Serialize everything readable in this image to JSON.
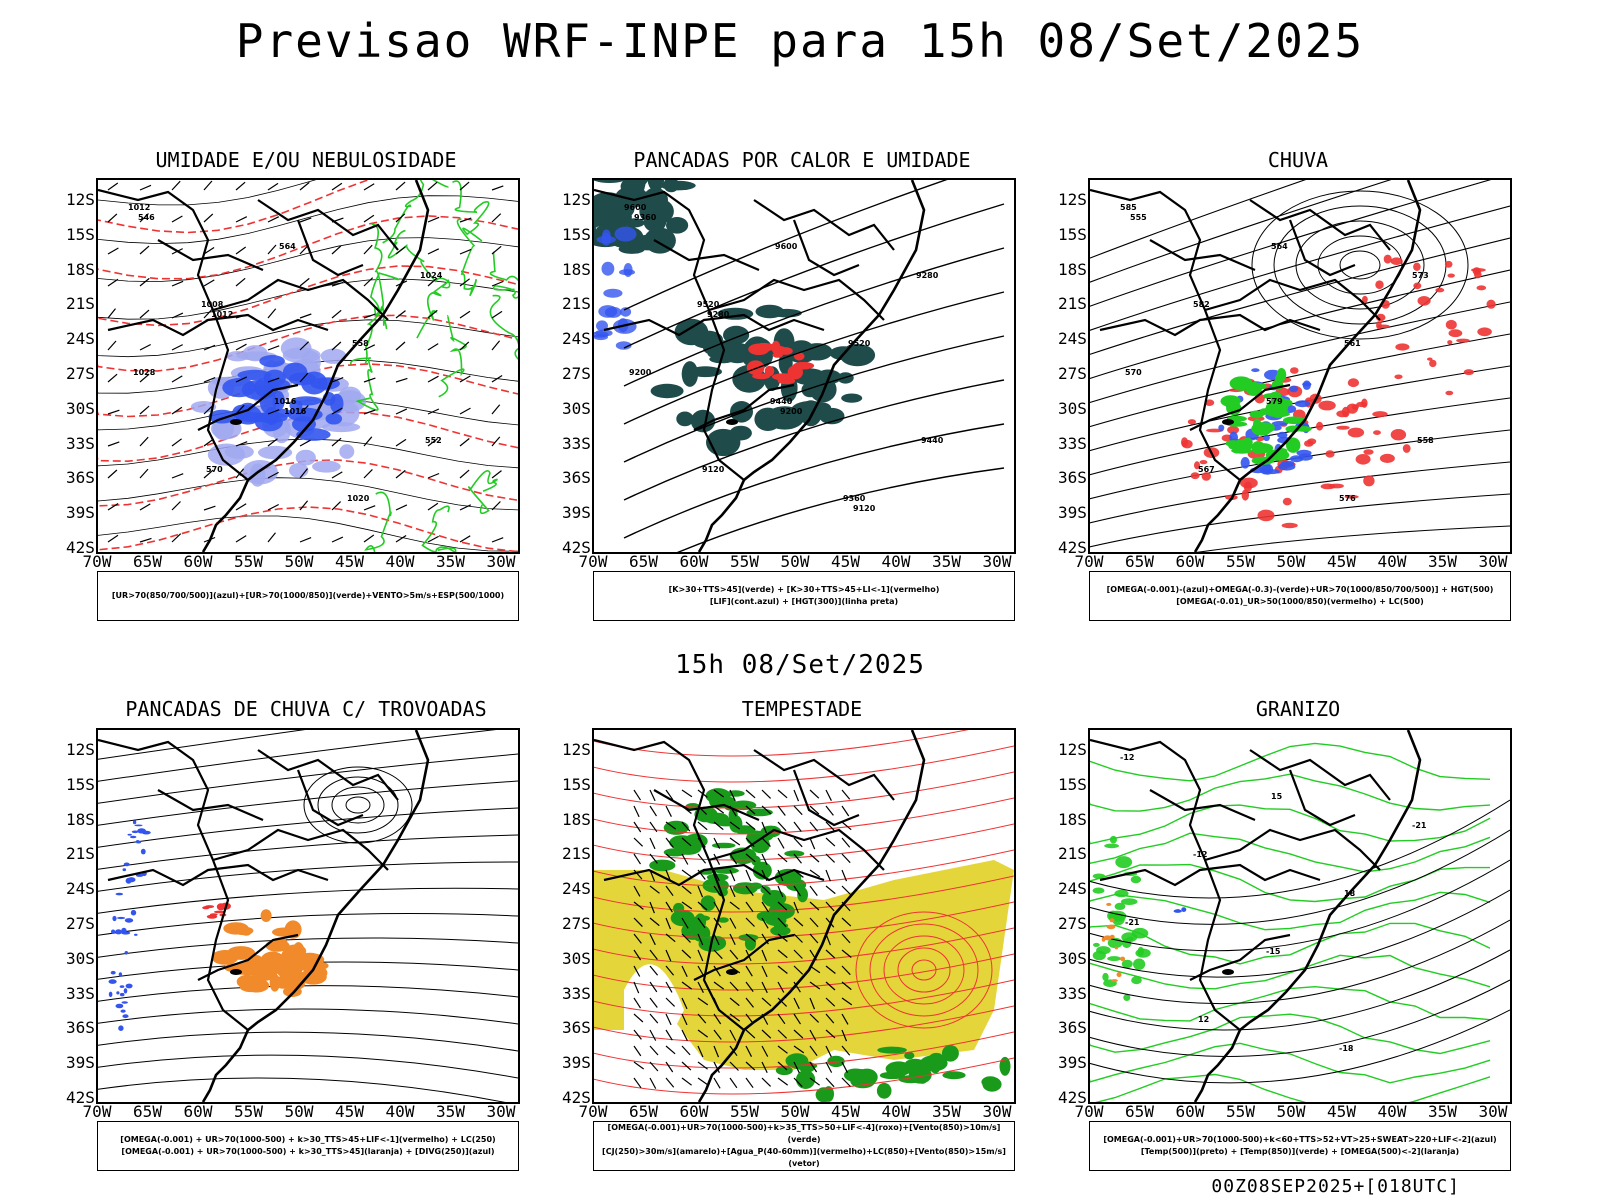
{
  "title": "Previsao WRF-INPE  para 15h 08/Set/2025",
  "mid_date": "15h 08/Set/2025",
  "footer": "00Z08SEP2025+[018UTC]",
  "axes": {
    "lat_labels": [
      "12S",
      "15S",
      "18S",
      "21S",
      "24S",
      "27S",
      "30S",
      "33S",
      "36S",
      "39S",
      "42S"
    ],
    "lon_labels": [
      "70W",
      "65W",
      "60W",
      "55W",
      "50W",
      "45W",
      "40W",
      "35W",
      "30W"
    ]
  },
  "panels": [
    {
      "id": "umidade",
      "title": "UMIDADE E/OU NEBULOSIDADE",
      "legend": [
        "[UR>70(850/700/500)](azul)+[UR>70(1000/850)](verde)+VENTO>5m/s+ESP(500/1000)"
      ],
      "contour_labels": [
        "1012",
        "1008",
        "1016",
        "1020",
        "1024",
        "1028",
        "570",
        "564",
        "558",
        "552",
        "546",
        "1012",
        "1016"
      ]
    },
    {
      "id": "pancadas-calor",
      "title": "PANCADAS POR CALOR E UMIDADE",
      "legend": [
        "[K>30+TTS>45](verde) + [K>30+TTS>45+LI<-1](vermelho)",
        "[LIF](cont.azul) + [HGT(300)](linha preta)"
      ],
      "contour_labels": [
        "9600",
        "9520",
        "9440",
        "9360",
        "9280",
        "9200",
        "9120",
        "9600",
        "9520",
        "9440",
        "9360",
        "9280",
        "9200",
        "9120"
      ]
    },
    {
      "id": "chuva",
      "title": "CHUVA",
      "legend": [
        "[OMEGA(-0.001)-(azul)+OMEGA(-0.3)-(verde)+UR>70(1000/850/700/500)] + HGT(500)",
        "[OMEGA(-0.01)_UR>50(1000/850)(vermelho) + LC(500)"
      ],
      "contour_labels": [
        "585",
        "582",
        "579",
        "576",
        "573",
        "570",
        "567",
        "564",
        "561",
        "558",
        "555"
      ]
    },
    {
      "id": "trovoadas",
      "title": "PANCADAS DE CHUVA C/ TROVOADAS",
      "legend": [
        "[OMEGA(-0.001) + UR>70(1000-500) + k>30_TTS>45+LIF<-1](vermelho) + LC(250)",
        "[OMEGA(-0.001) + UR>70(1000-500) + k>30_TTS>45](laranja) + [DIVG(250)](azul)"
      ],
      "contour_labels": []
    },
    {
      "id": "tempestade",
      "title": "TEMPESTADE",
      "legend": [
        "[OMEGA(-0.001)+UR>70(1000-500)+k>35_TTS>50+LIF<-4](roxo)+[Vento(850)>10m/s](verde)",
        "[CJ(250)>30m/s](amarelo)+[Agua_P(40-60mm)](vermelho)+LC(850)+[Vento(850)>15m/s](vetor)"
      ],
      "contour_labels": []
    },
    {
      "id": "granizo",
      "title": "GRANIZO",
      "legend": [
        "[OMEGA(-0.001)+UR>70(1000-500)+k<60+TTS>52+VT>25+SWEAT>220+LIF<-2](azul)",
        "[Temp(500)](preto) + [Temp(850)](verde) + [OMEGA(500)<-2](laranja)"
      ],
      "contour_labels": [
        "-12",
        "-12",
        "-15",
        "-18",
        "-21",
        "-21",
        "12",
        "15",
        "18"
      ]
    }
  ],
  "colors": {
    "black": "#000000",
    "green": "#22cc22",
    "red": "#ee3333",
    "blue": "#3355ee",
    "lightblue": "#a0a8f0",
    "darkteal": "#1f4b4b",
    "orange": "#f08a2a",
    "yellow": "#e4d63a",
    "darkgreen": "#1a9a1a"
  }
}
